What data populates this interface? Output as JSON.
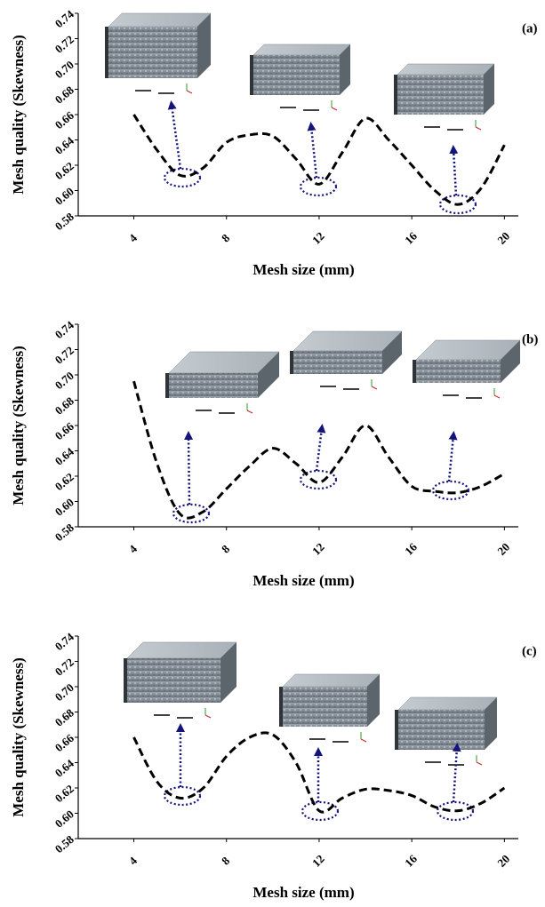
{
  "chart_data": [
    {
      "type": "line",
      "label": "(a)",
      "x_label": "Mesh size (mm)",
      "y_label": "Mesh quality (Skewness)",
      "x": [
        4,
        5,
        6,
        7,
        8,
        9,
        10,
        11,
        12,
        13,
        14,
        15,
        16,
        17,
        18,
        19,
        20
      ],
      "series": [
        {
          "color": "#000000",
          "line_style": "dashed",
          "values": [
            0.66,
            0.632,
            0.612,
            0.618,
            0.638,
            0.644,
            0.643,
            0.625,
            0.605,
            0.63,
            0.657,
            0.64,
            0.62,
            0.6,
            0.589,
            0.602,
            0.636
          ]
        }
      ],
      "xlim": [
        1.6,
        20.6
      ],
      "ylim": [
        0.58,
        0.74
      ],
      "xticks": [
        4,
        8,
        12,
        16,
        20
      ],
      "yticks": [
        0.58,
        {
          "value": 0.6,
          "label": "0.60"
        },
        0.62,
        0.64,
        0.66,
        0.68,
        {
          "value": 0.7,
          "label": "0.70"
        },
        0.72,
        0.74
      ]
    },
    {
      "type": "line",
      "label": "(b)",
      "x_label": "Mesh size (mm)",
      "y_label": "Mesh quality (Skewness)",
      "x": [
        4,
        5,
        6,
        7,
        8,
        9,
        10,
        11,
        12,
        13,
        14,
        15,
        16,
        17,
        18,
        19,
        20
      ],
      "series": [
        {
          "color": "#000000",
          "line_style": "dashed",
          "values": [
            0.695,
            0.63,
            0.59,
            0.592,
            0.61,
            0.628,
            0.642,
            0.63,
            0.615,
            0.635,
            0.66,
            0.635,
            0.612,
            0.608,
            0.607,
            0.612,
            0.622
          ]
        }
      ],
      "xlim": [
        1.6,
        20.6
      ],
      "ylim": [
        0.58,
        0.74
      ],
      "xticks": [
        4,
        8,
        12,
        16,
        20
      ],
      "yticks": [
        0.58,
        {
          "value": 0.6,
          "label": "0.60"
        },
        0.62,
        0.64,
        0.66,
        0.68,
        {
          "value": 0.7,
          "label": "0.70"
        },
        0.72,
        0.74
      ]
    },
    {
      "type": "line",
      "label": "(c)",
      "x_label": "Mesh size (mm)",
      "y_label": "Mesh quality (Skewness)",
      "x": [
        4,
        5,
        6,
        7,
        8,
        9,
        10,
        11,
        12,
        13,
        14,
        15,
        16,
        17,
        18,
        19,
        20
      ],
      "series": [
        {
          "color": "#000000",
          "line_style": "dashed",
          "values": [
            0.66,
            0.625,
            0.612,
            0.62,
            0.645,
            0.66,
            0.662,
            0.64,
            0.602,
            0.612,
            0.619,
            0.618,
            0.614,
            0.605,
            0.602,
            0.608,
            0.62
          ]
        }
      ],
      "xlim": [
        1.6,
        20.6
      ],
      "ylim": [
        0.58,
        0.74
      ],
      "xticks": [
        4,
        8,
        12,
        16,
        20
      ],
      "yticks": [
        0.58,
        {
          "value": 0.6,
          "label": "0.60"
        },
        0.62,
        0.64,
        0.66,
        0.68,
        {
          "value": 0.7,
          "label": "0.70"
        },
        0.72,
        0.74
      ]
    }
  ]
}
